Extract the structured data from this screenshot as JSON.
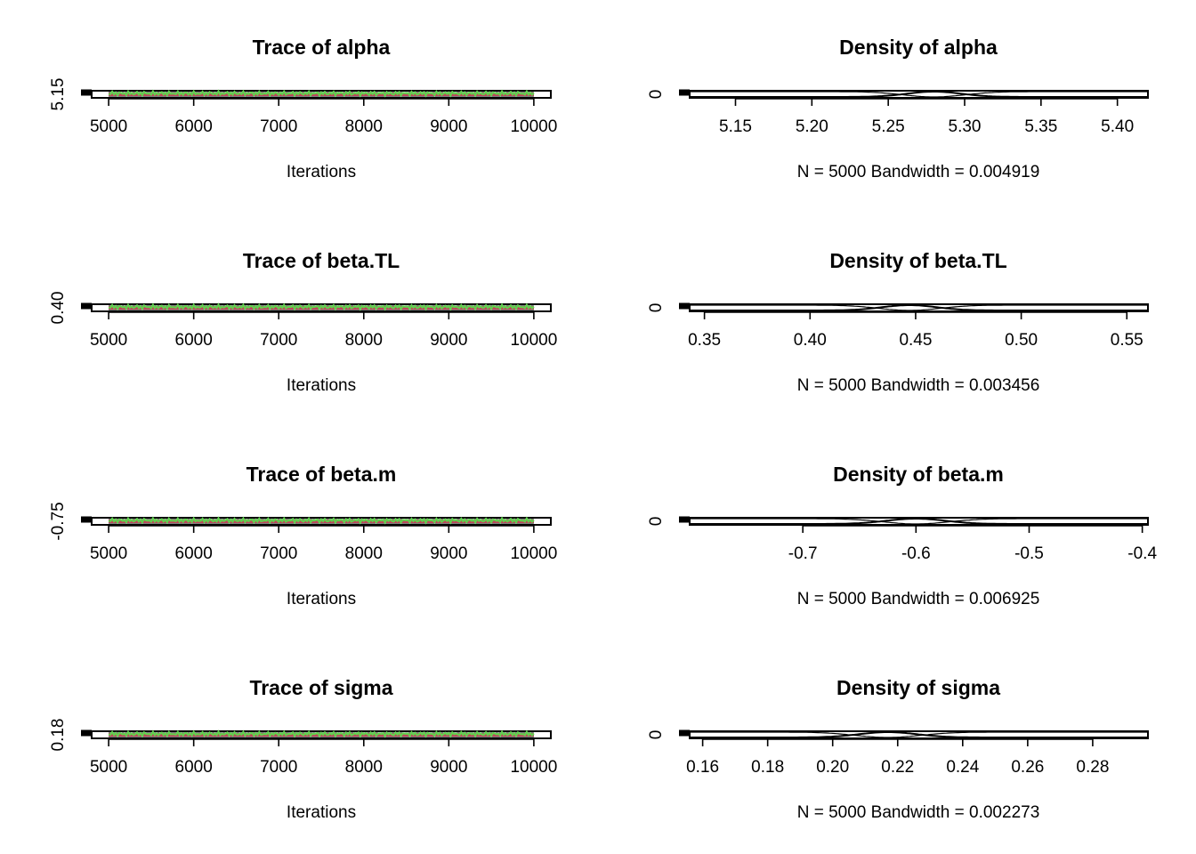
{
  "chart_data": [
    {
      "type": "line",
      "title": "Trace of alpha",
      "xlabel": "Iterations",
      "xticks": [
        5000,
        6000,
        7000,
        8000,
        9000,
        10000
      ],
      "xlim": [
        4800,
        10200
      ],
      "yticks": [
        "5.15"
      ],
      "x_range": [
        5000,
        10000
      ],
      "series_colors": [
        "#000000",
        "#DF536B",
        "#61D04F"
      ]
    },
    {
      "type": "line",
      "title": "Density of alpha",
      "xlabel": "N = 5000   Bandwidth = 0.004919",
      "xticks": [
        "5.15",
        "5.20",
        "5.25",
        "5.30",
        "5.35",
        "5.40"
      ],
      "xlim": [
        5.12,
        5.42
      ],
      "yticks": [
        "0"
      ],
      "peak_x": 5.28,
      "spread": 0.018
    },
    {
      "type": "line",
      "title": "Trace of beta.TL",
      "xlabel": "Iterations",
      "xticks": [
        5000,
        6000,
        7000,
        8000,
        9000,
        10000
      ],
      "xlim": [
        4800,
        10200
      ],
      "yticks": [
        "0.40"
      ],
      "x_range": [
        5000,
        10000
      ],
      "series_colors": [
        "#000000",
        "#DF536B",
        "#61D04F"
      ]
    },
    {
      "type": "line",
      "title": "Density of beta.TL",
      "xlabel": "N = 5000   Bandwidth = 0.003456",
      "xticks": [
        "0.35",
        "0.40",
        "0.45",
        "0.50",
        "0.55"
      ],
      "xlim": [
        0.343,
        0.56
      ],
      "yticks": [
        "0"
      ],
      "peak_x": 0.447,
      "spread": 0.013
    },
    {
      "type": "line",
      "title": "Trace of beta.m",
      "xlabel": "Iterations",
      "xticks": [
        5000,
        6000,
        7000,
        8000,
        9000,
        10000
      ],
      "xlim": [
        4800,
        10200
      ],
      "yticks": [
        "-0.75"
      ],
      "x_range": [
        5000,
        10000
      ],
      "series_colors": [
        "#000000",
        "#DF536B",
        "#61D04F"
      ]
    },
    {
      "type": "line",
      "title": "Density of beta.m",
      "xlabel": "N = 5000   Bandwidth = 0.006925",
      "xticks": [
        "-0.7",
        "-0.6",
        "-0.5",
        "-0.4"
      ],
      "xlim": [
        -0.8,
        -0.395
      ],
      "yticks": [
        "0"
      ],
      "peak_x": -0.6,
      "spread": 0.026
    },
    {
      "type": "line",
      "title": "Trace of sigma",
      "xlabel": "Iterations",
      "xticks": [
        5000,
        6000,
        7000,
        8000,
        9000,
        10000
      ],
      "xlim": [
        4800,
        10200
      ],
      "yticks": [
        "0.18"
      ],
      "x_range": [
        5000,
        10000
      ],
      "series_colors": [
        "#000000",
        "#DF536B",
        "#61D04F"
      ]
    },
    {
      "type": "line",
      "title": "Density of sigma",
      "xlabel": "N = 5000   Bandwidth = 0.002273",
      "xticks": [
        "0.16",
        "0.18",
        "0.20",
        "0.22",
        "0.24",
        "0.26",
        "0.28"
      ],
      "xlim": [
        0.156,
        0.297
      ],
      "yticks": [
        "0"
      ],
      "peak_x": 0.217,
      "spread": 0.009
    }
  ]
}
